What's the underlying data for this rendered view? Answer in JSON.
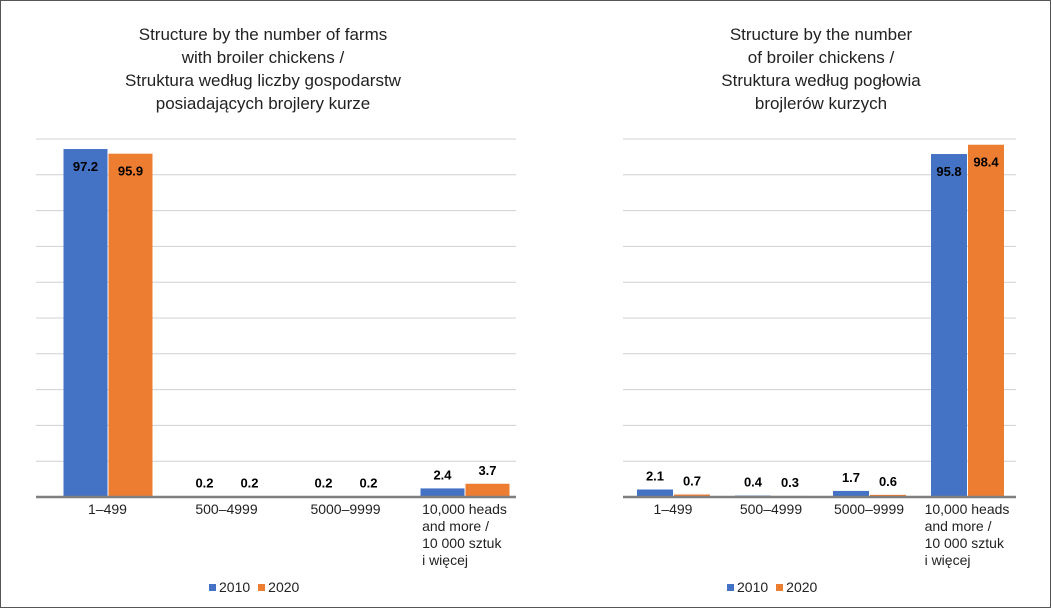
{
  "chart_data": [
    {
      "type": "bar",
      "title": "Structure by the number of farms\nwith broiler chickens /\nStruktura według liczby gospodarstw\nposiadających brojlery kurze",
      "categories": [
        "1–499",
        "500–4999",
        "5000–9999",
        "10,000 heads\nand more /\n10 000 sztuk\ni więcej"
      ],
      "series": [
        {
          "name": "2010",
          "color": "#4472c4",
          "values": [
            97.2,
            0.2,
            0.2,
            2.4
          ]
        },
        {
          "name": "2020",
          "color": "#ed7d31",
          "values": [
            95.9,
            0.2,
            0.2,
            3.7
          ]
        }
      ],
      "ylim": [
        0,
        100
      ],
      "yticks": [
        0,
        10,
        20,
        30,
        40,
        50,
        60,
        70,
        80,
        90,
        100
      ],
      "grid": true,
      "legend": "bottom"
    },
    {
      "type": "bar",
      "title": "Structure by the number\nof broiler chickens /\nStruktura według pogłowia\nbrojlerów kurzych",
      "categories": [
        "1–499",
        "500–4999",
        "5000–9999",
        "10,000 heads\nand more /\n10 000 sztuk\ni więcej"
      ],
      "series": [
        {
          "name": "2010",
          "color": "#4472c4",
          "values": [
            2.1,
            0.4,
            1.7,
            95.8
          ]
        },
        {
          "name": "2020",
          "color": "#ed7d31",
          "values": [
            0.7,
            0.3,
            0.6,
            98.4
          ]
        }
      ],
      "ylim": [
        0,
        100
      ],
      "yticks": [
        0,
        10,
        20,
        30,
        40,
        50,
        60,
        70,
        80,
        90,
        100
      ],
      "grid": true,
      "legend": "bottom"
    }
  ]
}
